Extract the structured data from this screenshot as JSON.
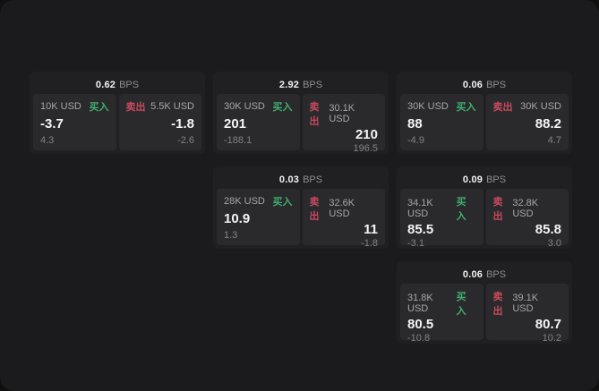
{
  "colors": {
    "buy_green": "#3fae71",
    "sell_red": "#c84a5f"
  },
  "cards": [
    {
      "row": 1,
      "col": 1,
      "bps_value": "0.62",
      "bps_unit": "BPS",
      "buy": {
        "amount": "10K USD",
        "action": "买入",
        "price": "-3.7",
        "delta": "4.3"
      },
      "sell": {
        "action": "卖出",
        "amount": "5.5K USD",
        "price": "-1.8",
        "delta": "-2.6"
      }
    },
    {
      "row": 1,
      "col": 2,
      "bps_value": "2.92",
      "bps_unit": "BPS",
      "buy": {
        "amount": "30K USD",
        "action": "买入",
        "price": "201",
        "delta": "-188.1"
      },
      "sell": {
        "action": "卖出",
        "amount": "30.1K USD",
        "price": "210",
        "delta": "196.5"
      }
    },
    {
      "row": 1,
      "col": 3,
      "bps_value": "0.06",
      "bps_unit": "BPS",
      "buy": {
        "amount": "30K USD",
        "action": "买入",
        "price": "88",
        "delta": "-4.9"
      },
      "sell": {
        "action": "卖出",
        "amount": "30K USD",
        "price": "88.2",
        "delta": "4.7"
      }
    },
    {
      "row": 2,
      "col": 2,
      "bps_value": "0.03",
      "bps_unit": "BPS",
      "buy": {
        "amount": "28K USD",
        "action": "买入",
        "price": "10.9",
        "delta": "1.3"
      },
      "sell": {
        "action": "卖出",
        "amount": "32.6K USD",
        "price": "11",
        "delta": "-1.8"
      }
    },
    {
      "row": 2,
      "col": 3,
      "bps_value": "0.09",
      "bps_unit": "BPS",
      "buy": {
        "amount": "34.1K USD",
        "action": "买入",
        "price": "85.5",
        "delta": "-3.1"
      },
      "sell": {
        "action": "卖出",
        "amount": "32.8K USD",
        "price": "85.8",
        "delta": "3.0"
      }
    },
    {
      "row": 3,
      "col": 3,
      "bps_value": "0.06",
      "bps_unit": "BPS",
      "buy": {
        "amount": "31.8K USD",
        "action": "买入",
        "price": "80.5",
        "delta": "-10.8"
      },
      "sell": {
        "action": "卖出",
        "amount": "39.1K USD",
        "price": "80.7",
        "delta": "10.2"
      }
    }
  ]
}
